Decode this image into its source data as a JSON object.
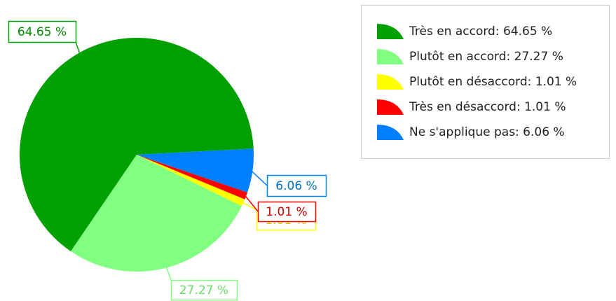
{
  "chart_data": {
    "type": "pie",
    "labels": [
      "Très en accord: 64.65 %",
      "Plutôt en accord: 27.27 %",
      "Plutôt en désaccord: 1.01 %",
      "Très en désaccord: 1.01 %",
      "Ne s'applique pas: 6.06 %"
    ],
    "values": [
      64.65,
      27.27,
      1.01,
      1.01,
      6.06
    ],
    "value_labels": [
      "64.65 %",
      "27.27 %",
      "1.01 %",
      "1.01 %",
      "6.06 %"
    ],
    "colors": [
      "#00a000",
      "#80ff80",
      "#ffff00",
      "#ff0000",
      "#0080ff"
    ],
    "legend": "top-right"
  }
}
